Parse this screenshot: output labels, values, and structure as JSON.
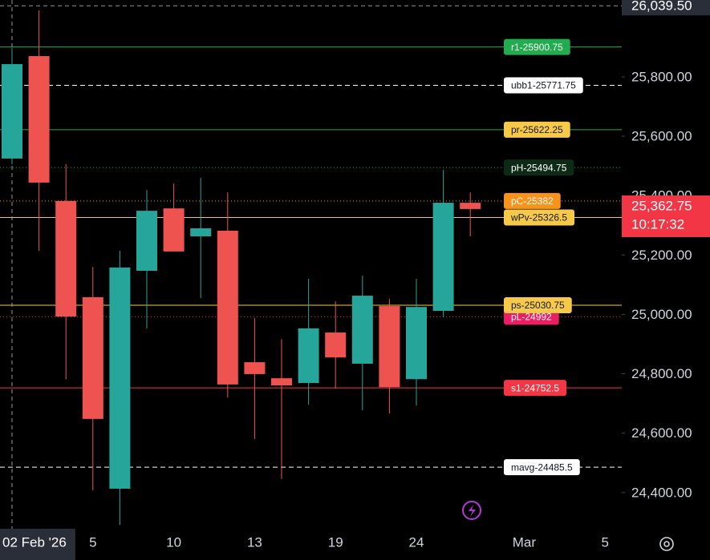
{
  "chart_data": {
    "type": "candlestick",
    "categories": [
      "02 Feb '26",
      null,
      null,
      "5",
      null,
      null,
      "10",
      null,
      null,
      "13",
      null,
      null,
      "19",
      null,
      null,
      "24",
      null,
      null,
      null,
      "Mar",
      null,
      null,
      "5"
    ],
    "series": {
      "open": [
        25525,
        25870,
        25382,
        25058,
        24413,
        25147,
        25357,
        25263,
        25282,
        24839,
        24785,
        24769,
        24939,
        24834,
        25028,
        24782,
        25012,
        25376
      ],
      "high": [
        25897,
        26024,
        25506,
        25160,
        25214,
        25419,
        25441,
        25460,
        25411,
        24988,
        24917,
        25120,
        25044,
        25131,
        25052,
        25120,
        25487,
        25411
      ],
      "low": [
        25506,
        25214,
        24782,
        24407,
        24291,
        24953,
        25220,
        25055,
        24720,
        24580,
        24445,
        24696,
        24750,
        24677,
        24666,
        24693,
        24990,
        25263
      ],
      "close": [
        25843,
        25444,
        24993,
        24648,
        25158,
        25349,
        25212,
        25290,
        24764,
        24799,
        24761,
        24953,
        24855,
        25063,
        24755,
        25025,
        25376,
        25355
      ]
    },
    "up_color": "#26a69a",
    "down_color": "#ef5350",
    "ylim": [
      24278,
      26059
    ],
    "yticks": [
      {
        "value": 24400,
        "label": "24,400.00"
      },
      {
        "value": 24600,
        "label": "24,600.00"
      },
      {
        "value": 24800,
        "label": "24,800.00"
      },
      {
        "value": 25000,
        "label": "25,000.00"
      },
      {
        "value": 25200,
        "label": "25,200.00"
      },
      {
        "value": 25400,
        "label": "25,400.00"
      },
      {
        "value": 25600,
        "label": "25,600.00"
      },
      {
        "value": 25800,
        "label": "25,800.00"
      }
    ],
    "levels": [
      {
        "label": "r1-25900.75",
        "value": 25900.75,
        "color": "#22ab4f",
        "text_color": "#ffffff",
        "style": "solid"
      },
      {
        "label": "ubb1-25771.75",
        "value": 25771.75,
        "color": "#ffffff",
        "text_color": "#131722",
        "style": "dashed"
      },
      {
        "label": "pr-25622.25",
        "value": 25622.25,
        "color": "#f7c948",
        "text_color": "#131722",
        "style": "solid",
        "line_color": "#22ab4f"
      },
      {
        "label": "pH-25494.75",
        "value": 25494.75,
        "color": "#0d2a17",
        "text_color": "#ffffff",
        "style": "dotted",
        "line_color": "#22ab4f"
      },
      {
        "label": "pC-25382",
        "value": 25382,
        "color": "#f7931a",
        "text_color": "#ffffff",
        "style": "dotted"
      },
      {
        "label": "wPv-25326.5",
        "value": 25326.5,
        "color": "#f7c948",
        "text_color": "#131722",
        "style": "solid"
      },
      {
        "label": "pL-24992",
        "value": 24992,
        "color": "#e91e63",
        "text_color": "#ffffff",
        "style": "dotted"
      },
      {
        "label": "ps-25030.75",
        "value": 25030.75,
        "color": "#f7c948",
        "text_color": "#131722",
        "style": "solid"
      },
      {
        "label": "s1-24752.5",
        "value": 24752.5,
        "color": "#f23645",
        "text_color": "#ffffff",
        "style": "solid"
      },
      {
        "label": "mavg-24485.5",
        "value": 24485.5,
        "color": "#ffffff",
        "text_color": "#131722",
        "style": "dashed"
      }
    ],
    "last_price": {
      "value": 25362.75,
      "label": "25,362.75",
      "countdown": "10:17:32",
      "color": "#f23645"
    },
    "crosshair": {
      "value": 26039.5,
      "label": "26,039.50",
      "index": 0
    }
  }
}
